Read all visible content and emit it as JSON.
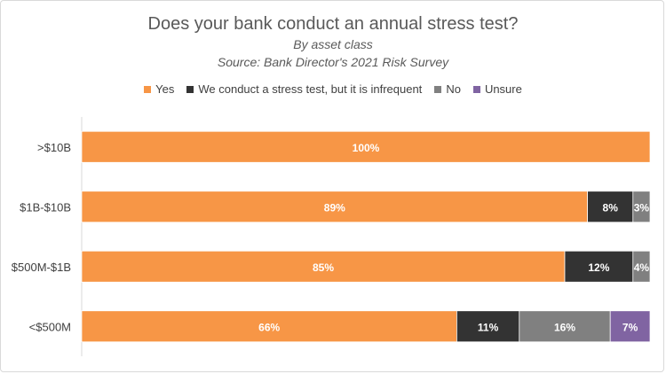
{
  "chart_data": {
    "type": "bar",
    "orientation": "horizontal",
    "stacked": true,
    "title": "Does your bank conduct an annual stress test?",
    "subtitle": "By asset class",
    "source": "Source: Bank Director's 2021 Risk Survey",
    "categories": [
      ">$10B",
      "$1B-$10B",
      "$500M-$1B",
      "<$500M"
    ],
    "xlim": [
      0,
      100
    ],
    "legend_position": "top",
    "grid": false,
    "series": [
      {
        "name": "Yes",
        "color": "#F79646",
        "values": [
          100,
          89,
          85,
          66
        ],
        "labels": [
          "100%",
          "89%",
          "85%",
          "66%"
        ]
      },
      {
        "name": "We conduct a stress test, but it is infrequent",
        "color": "#333333",
        "values": [
          0,
          8,
          12,
          11
        ],
        "labels": [
          "",
          "8%",
          "12%",
          "11%"
        ]
      },
      {
        "name": "No",
        "color": "#808080",
        "values": [
          0,
          3,
          4,
          16
        ],
        "labels": [
          "",
          "3%",
          "4%",
          "16%"
        ]
      },
      {
        "name": "Unsure",
        "color": "#8064A2",
        "values": [
          0,
          0,
          0,
          7
        ],
        "labels": [
          "",
          "",
          "",
          "7%"
        ]
      }
    ]
  }
}
